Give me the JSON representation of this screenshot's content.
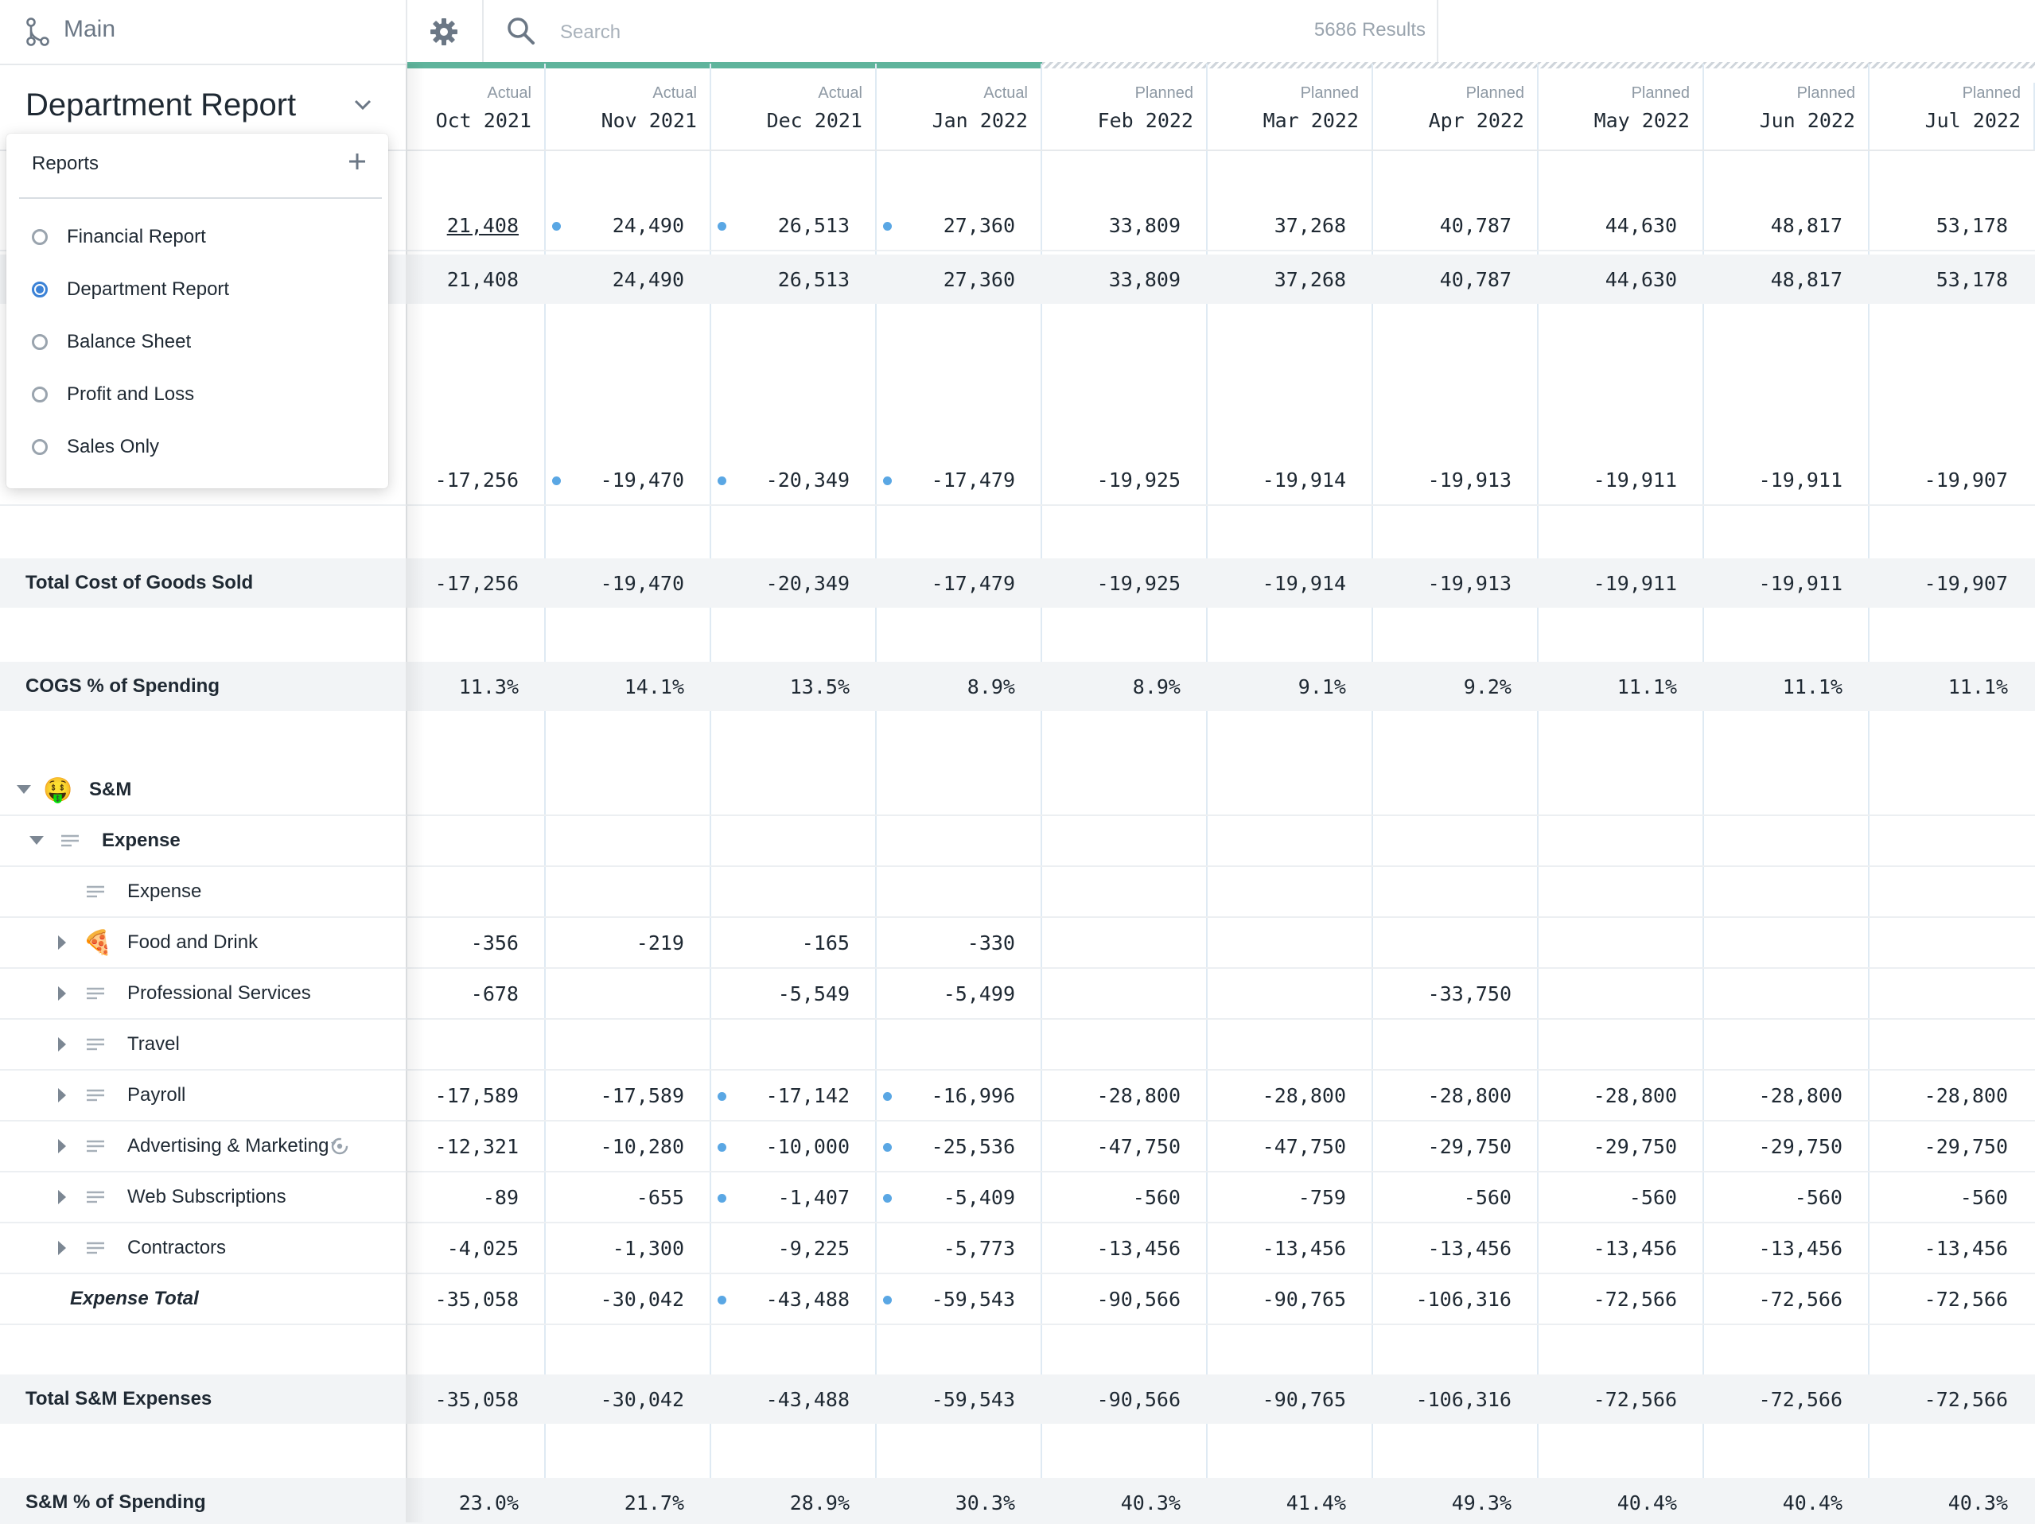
{
  "nav": {
    "main_label": "Main"
  },
  "search": {
    "placeholder": "Search",
    "results": "5686 Results"
  },
  "report": {
    "title": "Department Report"
  },
  "dropdown": {
    "header": "Reports",
    "items": [
      {
        "label": "Financial Report",
        "selected": false
      },
      {
        "label": "Department Report",
        "selected": true
      },
      {
        "label": "Balance Sheet",
        "selected": false
      },
      {
        "label": "Profit and Loss",
        "selected": false
      },
      {
        "label": "Sales Only",
        "selected": false
      }
    ]
  },
  "columns": [
    {
      "kind": "Actual",
      "month": "Oct 2021"
    },
    {
      "kind": "Actual",
      "month": "Nov 2021"
    },
    {
      "kind": "Actual",
      "month": "Dec 2021"
    },
    {
      "kind": "Actual",
      "month": "Jan 2022"
    },
    {
      "kind": "Planned",
      "month": "Feb 2022"
    },
    {
      "kind": "Planned",
      "month": "Mar 2022"
    },
    {
      "kind": "Planned",
      "month": "Apr 2022"
    },
    {
      "kind": "Planned",
      "month": "May 2022"
    },
    {
      "kind": "Planned",
      "month": "Jun 2022"
    },
    {
      "kind": "Planned",
      "month": "Jul 2022"
    }
  ],
  "rows": [
    {
      "id": "revenue",
      "label": "",
      "values": [
        "21,408",
        "24,490",
        "26,513",
        "27,360",
        "33,809",
        "37,268",
        "40,787",
        "44,630",
        "48,817",
        "53,178"
      ],
      "dots": [
        1,
        2,
        3
      ],
      "first_link": true
    },
    {
      "id": "total-revenue",
      "label": "",
      "shaded": true,
      "values": [
        "21,408",
        "24,490",
        "26,513",
        "27,360",
        "33,809",
        "37,268",
        "40,787",
        "44,630",
        "48,817",
        "53,178"
      ]
    },
    {
      "id": "cogs",
      "label": "",
      "values": [
        "-17,256",
        "-19,470",
        "-20,349",
        "-17,479",
        "-19,925",
        "-19,914",
        "-19,913",
        "-19,911",
        "-19,911",
        "-19,907"
      ],
      "dots": [
        1,
        2,
        3
      ]
    },
    {
      "id": "total-cogs",
      "label": "Total Cost of Goods Sold",
      "shaded": true,
      "values": [
        "-17,256",
        "-19,470",
        "-20,349",
        "-17,479",
        "-19,925",
        "-19,914",
        "-19,913",
        "-19,911",
        "-19,911",
        "-19,907"
      ]
    },
    {
      "id": "cogs-pct",
      "label": "COGS % of Spending",
      "shaded": true,
      "values": [
        "11.3%",
        "14.1%",
        "13.5%",
        "8.9%",
        "8.9%",
        "9.1%",
        "9.2%",
        "11.1%",
        "11.1%",
        "11.1%"
      ]
    },
    {
      "id": "sm",
      "label": "S&M",
      "emoji": "🤑",
      "values": [
        "",
        "",
        "",
        "",
        "",
        "",
        "",
        "",
        "",
        ""
      ]
    },
    {
      "id": "expense-group",
      "label": "Expense",
      "values": [
        "",
        "",
        "",
        "",
        "",
        "",
        "",
        "",
        "",
        ""
      ]
    },
    {
      "id": "expense",
      "label": "Expense",
      "values": [
        "",
        "",
        "",
        "",
        "",
        "",
        "",
        "",
        "",
        ""
      ]
    },
    {
      "id": "food",
      "label": "Food and Drink",
      "emoji": "🍕",
      "values": [
        "-356",
        "-219",
        "-165",
        "-330",
        "",
        "",
        "",
        "",
        "",
        ""
      ]
    },
    {
      "id": "pro-services",
      "label": "Professional Services",
      "values": [
        "-678",
        "",
        "-5,549",
        "-5,499",
        "",
        "",
        "-33,750",
        "",
        "",
        ""
      ]
    },
    {
      "id": "travel",
      "label": "Travel",
      "values": [
        "",
        "",
        "",
        "",
        "",
        "",
        "",
        "",
        "",
        ""
      ]
    },
    {
      "id": "payroll",
      "label": "Payroll",
      "values": [
        "-17,589",
        "-17,589",
        "-17,142",
        "-16,996",
        "-28,800",
        "-28,800",
        "-28,800",
        "-28,800",
        "-28,800",
        "-28,800"
      ],
      "dots": [
        2,
        3
      ]
    },
    {
      "id": "advertising",
      "label": "Advertising & Marketing",
      "values": [
        "-12,321",
        "-10,280",
        "-10,000",
        "-25,536",
        "-47,750",
        "-47,750",
        "-29,750",
        "-29,750",
        "-29,750",
        "-29,750"
      ],
      "dots": [
        2,
        3
      ]
    },
    {
      "id": "web-subs",
      "label": "Web Subscriptions",
      "values": [
        "-89",
        "-655",
        "-1,407",
        "-5,409",
        "-560",
        "-759",
        "-560",
        "-560",
        "-560",
        "-560"
      ],
      "dots": [
        2,
        3
      ]
    },
    {
      "id": "contractors",
      "label": "Contractors",
      "values": [
        "-4,025",
        "-1,300",
        "-9,225",
        "-5,773",
        "-13,456",
        "-13,456",
        "-13,456",
        "-13,456",
        "-13,456",
        "-13,456"
      ]
    },
    {
      "id": "expense-total",
      "label": "Expense Total",
      "values": [
        "-35,058",
        "-30,042",
        "-43,488",
        "-59,543",
        "-90,566",
        "-90,765",
        "-106,316",
        "-72,566",
        "-72,566",
        "-72,566"
      ],
      "dots": [
        2,
        3
      ]
    },
    {
      "id": "total-sm",
      "label": "Total S&M Expenses",
      "shaded": true,
      "values": [
        "-35,058",
        "-30,042",
        "-43,488",
        "-59,543",
        "-90,566",
        "-90,765",
        "-106,316",
        "-72,566",
        "-72,566",
        "-72,566"
      ]
    },
    {
      "id": "sm-pct",
      "label": "S&M % of Spending",
      "shaded": true,
      "values": [
        "23.0%",
        "21.7%",
        "28.9%",
        "30.3%",
        "40.3%",
        "41.4%",
        "49.3%",
        "40.4%",
        "40.4%",
        "40.3%"
      ]
    }
  ]
}
